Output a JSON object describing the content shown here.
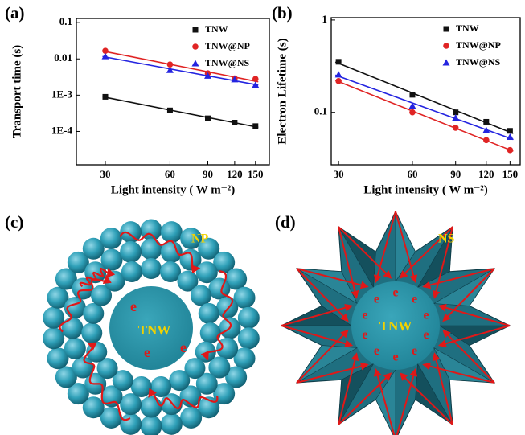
{
  "chart_data": [
    {
      "type": "scatter",
      "panel_label": "(a)",
      "xlabel": "Light intensity ( W m⁻²)",
      "ylabel": "Transport time (s)",
      "x": [
        30,
        60,
        90,
        120,
        150
      ],
      "log_x": true,
      "log_y": true,
      "fit": true,
      "legend": "upper right",
      "xlim": [
        22,
        174
      ],
      "ylim": [
        1.2e-05,
        0.13
      ],
      "xticks": [
        30,
        60,
        90,
        120,
        150
      ],
      "yticks": [
        {
          "value": 0.0001,
          "label": "1E-4"
        },
        {
          "value": 0.001,
          "label": "1E-3"
        },
        0.01,
        0.1
      ],
      "series": [
        {
          "name": "TNW",
          "color": "#111111",
          "marker": "square",
          "values": [
            0.0009,
            0.00038,
            0.00023,
            0.000175,
            0.00014
          ]
        },
        {
          "name": "TNW@NP",
          "color": "#e02424",
          "marker": "circle",
          "values": [
            0.0167,
            0.007,
            0.004,
            0.0029,
            0.0028
          ]
        },
        {
          "name": "TNW@NS",
          "color": "#2424e0",
          "marker": "triangle",
          "values": [
            0.0117,
            0.0049,
            0.0034,
            0.0027,
            0.0019
          ]
        }
      ]
    },
    {
      "type": "scatter",
      "panel_label": "(b)",
      "xlabel": "Light intensity ( W m⁻²)",
      "ylabel": "Electron Lifetime (s)",
      "x": [
        30,
        60,
        90,
        120,
        150
      ],
      "log_x": true,
      "log_y": true,
      "fit": true,
      "legend": "upper right",
      "xlim": [
        28,
        165
      ],
      "ylim": [
        0.027,
        1.06
      ],
      "xticks": [
        30,
        60,
        90,
        120,
        150
      ],
      "yticks": [
        0.1,
        1
      ],
      "series": [
        {
          "name": "TNW",
          "color": "#111111",
          "marker": "square",
          "values": [
            0.353,
            0.155,
            0.1,
            0.079,
            0.063
          ]
        },
        {
          "name": "TNW@NP",
          "color": "#e02424",
          "marker": "circle",
          "values": [
            0.218,
            0.1,
            0.068,
            0.05,
            0.039
          ]
        },
        {
          "name": "TNW@NS",
          "color": "#2424e0",
          "marker": "triangle",
          "values": [
            0.256,
            0.117,
            0.087,
            0.064,
            0.054
          ]
        }
      ]
    }
  ],
  "diagrams": [
    {
      "panel_label": "(c)",
      "shell_label": "NP",
      "core_label": "TNW",
      "carrier_label": "e"
    },
    {
      "panel_label": "(d)",
      "shell_label": "NS",
      "core_label": "TNW",
      "carrier_label": "e"
    }
  ]
}
